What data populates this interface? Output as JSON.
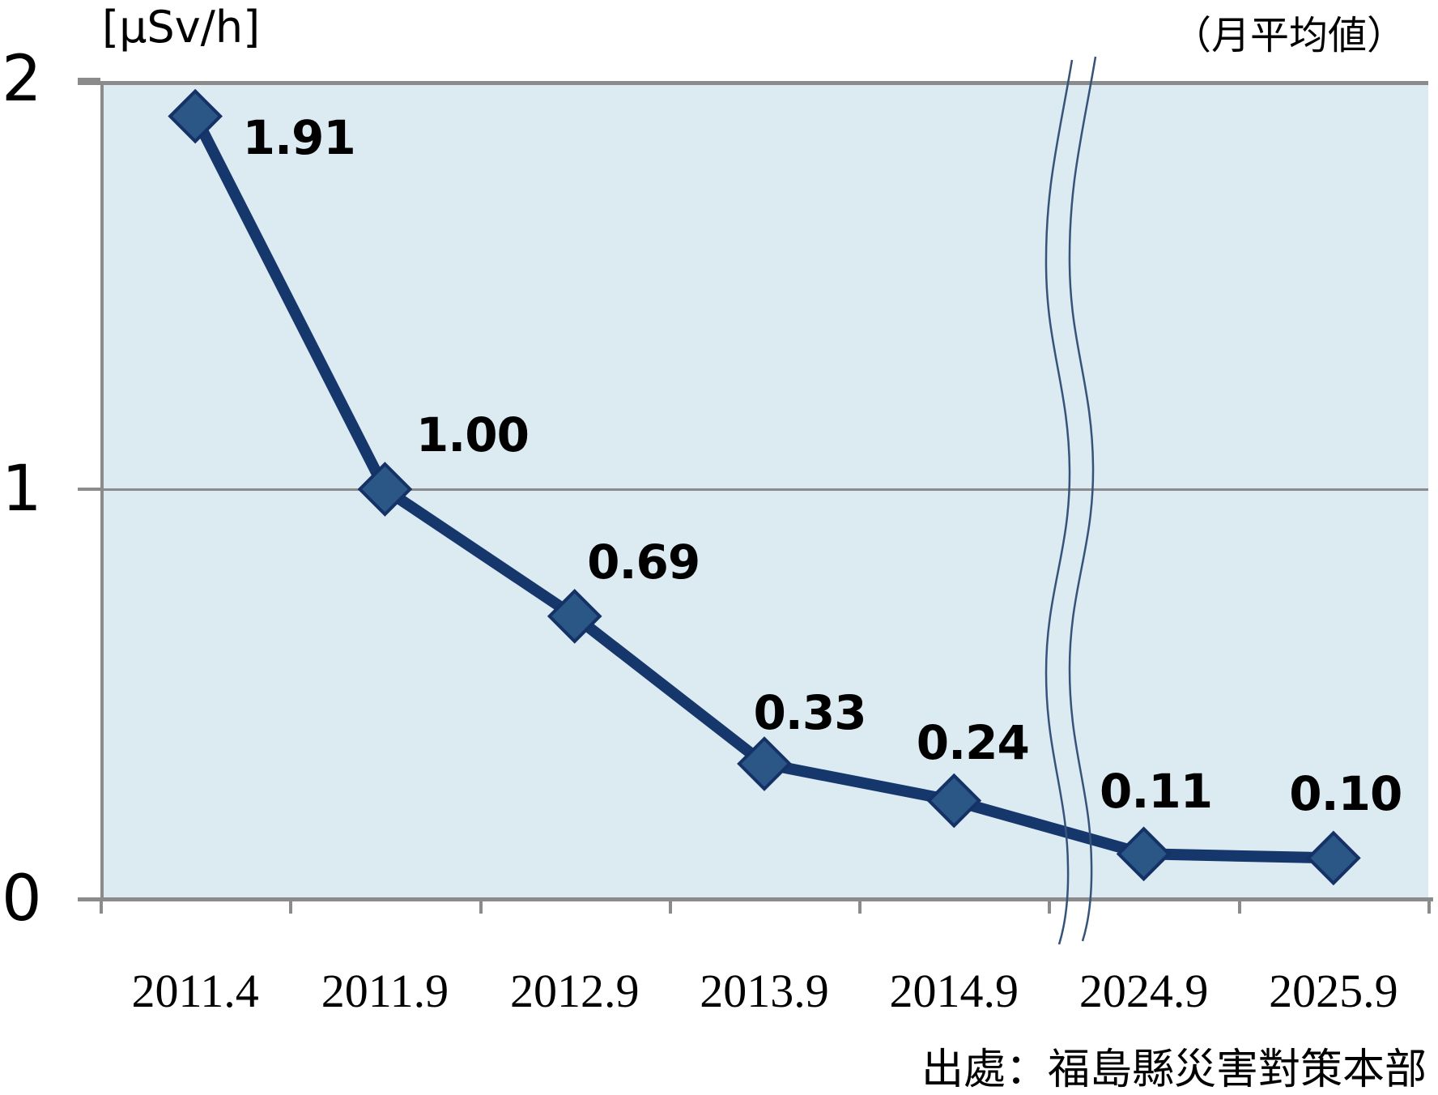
{
  "chart_data": {
    "type": "line",
    "unit_label": "[μSv/h]",
    "subtitle": "（月平均値）",
    "source": "出處：福島縣災害對策本部",
    "categories": [
      "2011.4",
      "2011.9",
      "2012.9",
      "2013.9",
      "2014.9",
      "2024.9",
      "2025.9"
    ],
    "series": [
      {
        "values": [
          1.91,
          1.0,
          0.69,
          0.33,
          0.24,
          0.11,
          0.1
        ],
        "point_labels": [
          "1.91",
          "1.00",
          "0.69",
          "0.33",
          "0.24",
          "0.11",
          "0.10"
        ]
      }
    ],
    "ylim": [
      0,
      2
    ],
    "yticks": [
      {
        "value": 0,
        "label": "0"
      },
      {
        "value": 1,
        "label": "1"
      },
      {
        "value": 2,
        "label": "2"
      }
    ],
    "grid": "horizontal gridline at y=1 only",
    "legend": "none",
    "axis_break_between": [
      "2014.9",
      "2024.9"
    ],
    "colors": {
      "line": "#16376b",
      "marker_fill": "#2b5787",
      "marker_stroke": "#143266",
      "plot_background": "#dcebf2",
      "axis": "#8b8b8b",
      "break_line": "#36537a",
      "text": "#000000"
    }
  }
}
